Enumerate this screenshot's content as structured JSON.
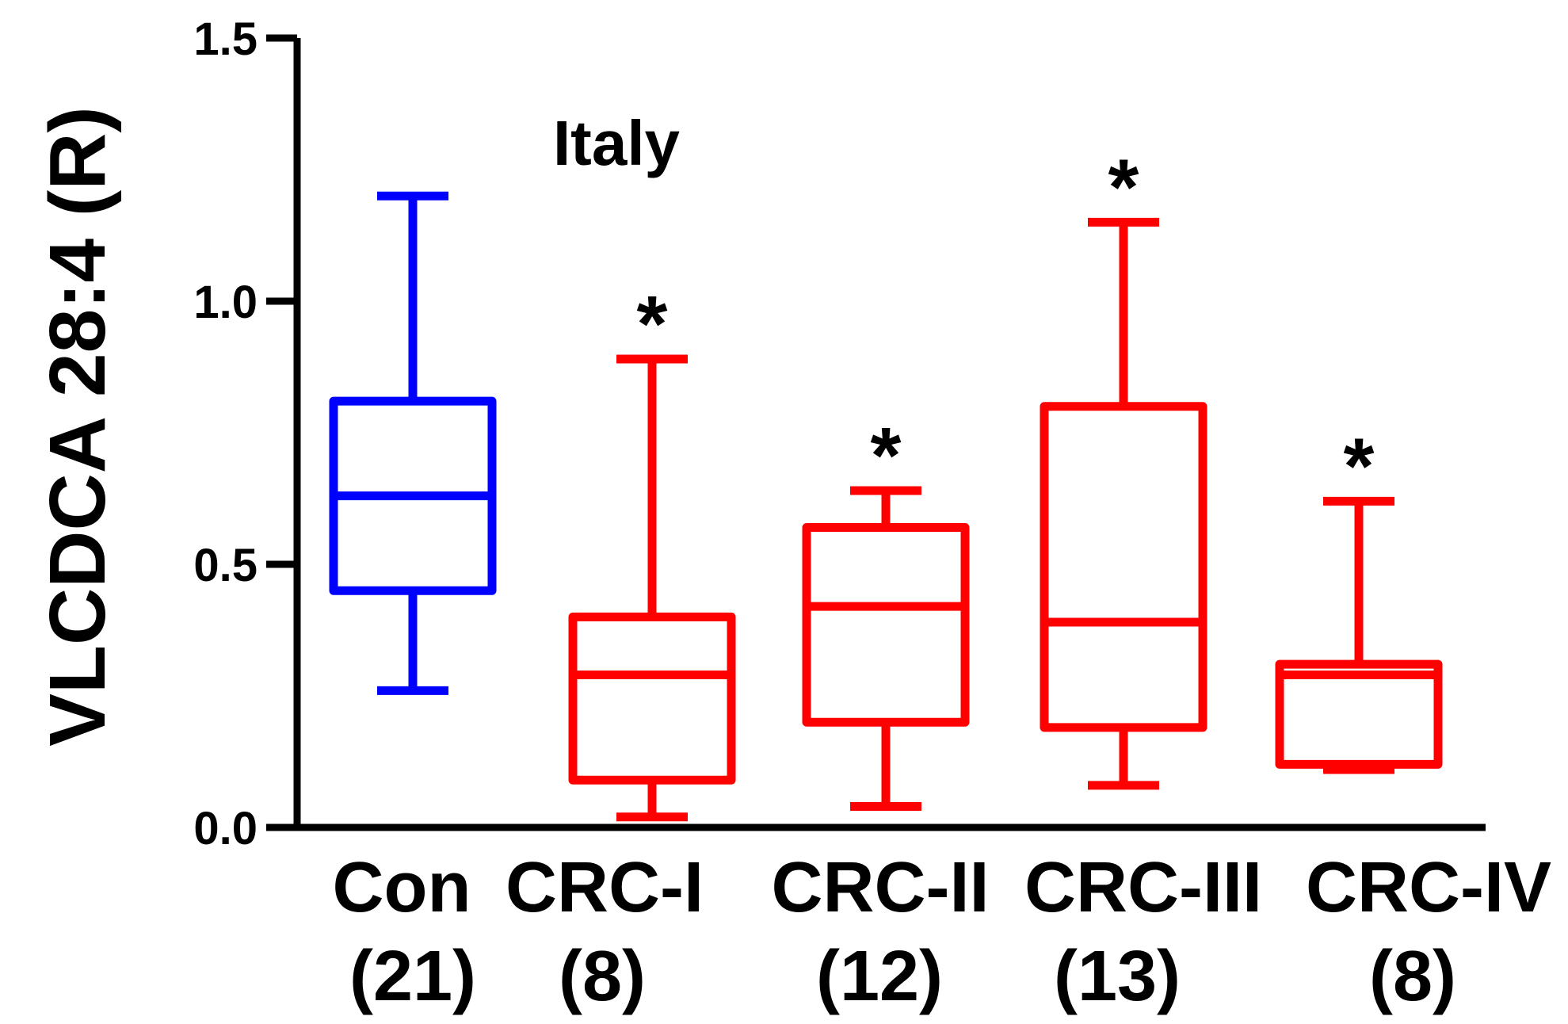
{
  "chart_data": {
    "type": "boxplot",
    "title": "Italy",
    "ylabel": "VLCDCA 28:4 (R)",
    "ylim": [
      0,
      1.5
    ],
    "yticks": [
      "0.0",
      "0.5",
      "1.0",
      "1.5"
    ],
    "categories": [
      "Con",
      "CRC-I",
      "CRC-II",
      "CRC-III",
      "CRC-IV"
    ],
    "sample_sizes": [
      "(21)",
      "(8)",
      "(12)",
      "(13)",
      "(8)"
    ],
    "significance": [
      "",
      "*",
      "*",
      "*",
      "*"
    ],
    "colors": [
      "#0000ff",
      "#ff0000",
      "#ff0000",
      "#ff0000",
      "#ff0000"
    ],
    "boxes": [
      {
        "min": 0.26,
        "q1": 0.45,
        "median": 0.63,
        "q3": 0.81,
        "max": 1.2
      },
      {
        "min": 0.02,
        "q1": 0.09,
        "median": 0.29,
        "q3": 0.4,
        "max": 0.89
      },
      {
        "min": 0.04,
        "q1": 0.2,
        "median": 0.42,
        "q3": 0.57,
        "max": 0.64
      },
      {
        "min": 0.08,
        "q1": 0.19,
        "median": 0.39,
        "q3": 0.8,
        "max": 1.15
      },
      {
        "min": 0.11,
        "q1": 0.12,
        "median": 0.29,
        "q3": 0.31,
        "max": 0.62
      }
    ]
  }
}
